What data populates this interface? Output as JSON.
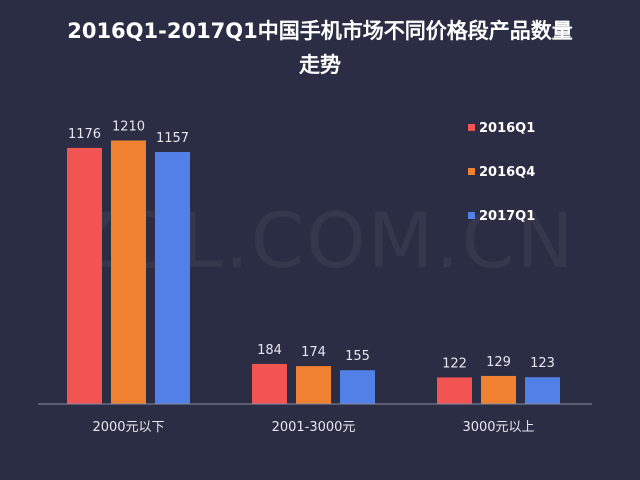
{
  "chart_data": {
    "type": "bar",
    "title": "2016Q1-2017Q1中国手机市场不同价格段产品数量\n走势",
    "categories": [
      "2000元以下",
      "2001-3000元",
      "3000元以上"
    ],
    "series": [
      {
        "name": "2016Q1",
        "color": "#f25454",
        "values": [
          1176,
          184,
          122
        ]
      },
      {
        "name": "2016Q4",
        "color": "#ef8131",
        "values": [
          1210,
          174,
          129
        ]
      },
      {
        "name": "2017Q1",
        "color": "#5181e6",
        "values": [
          1157,
          155,
          123
        ]
      }
    ],
    "ylim": [
      0,
      1350
    ],
    "grid": false,
    "legend_position": "top-right"
  },
  "watermark": "ZOL.COM.CN"
}
